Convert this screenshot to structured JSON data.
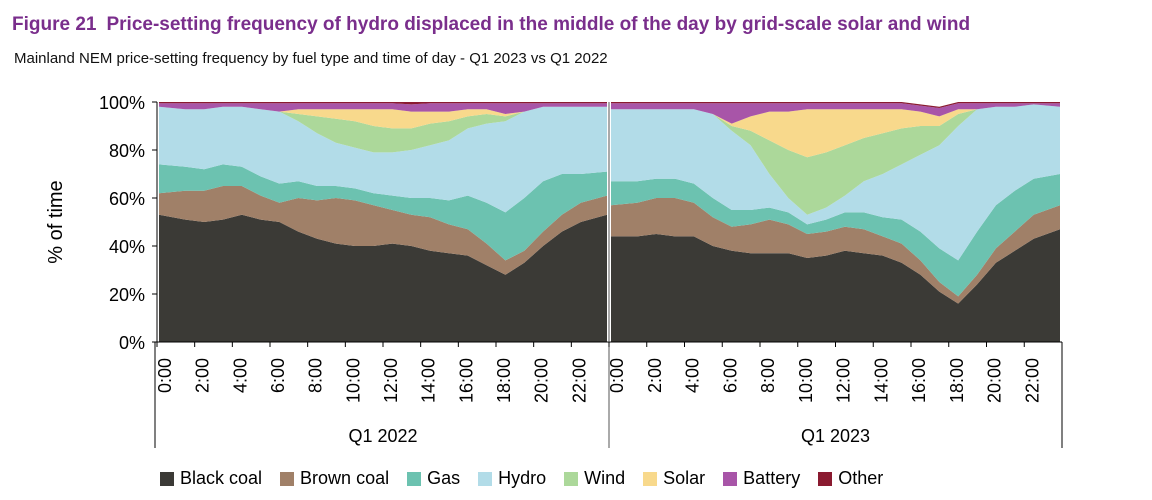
{
  "figure": {
    "number": "Figure 21",
    "title": "Price-setting frequency of hydro displaced in the middle of the day by grid-scale solar and wind",
    "subtitle": "Mainland NEM price-setting frequency by fuel type and time of day - Q1 2023 vs Q1 2022"
  },
  "colors": {
    "Black coal": "#3b3a36",
    "Brown coal": "#a08068",
    "Gas": "#6cc2b0",
    "Hydro": "#b2dce8",
    "Wind": "#acd89a",
    "Solar": "#f8d98c",
    "Battery": "#a855a8",
    "Other": "#8a1a30"
  },
  "chart_data": {
    "type": "area",
    "stacked": true,
    "ylabel": "% of time",
    "ylim": [
      0,
      100
    ],
    "yticks": [
      "0%",
      "20%",
      "40%",
      "60%",
      "80%",
      "100%"
    ],
    "xtick_labels": [
      "0:00",
      "2:00",
      "4:00",
      "6:00",
      "8:00",
      "10:00",
      "12:00",
      "14:00",
      "16:00",
      "18:00",
      "20:00",
      "22:00"
    ],
    "groups": [
      "Q1 2022",
      "Q1 2023"
    ],
    "x": [
      "0:00",
      "1:00",
      "2:00",
      "3:00",
      "4:00",
      "5:00",
      "6:00",
      "7:00",
      "8:00",
      "9:00",
      "10:00",
      "11:00",
      "12:00",
      "13:00",
      "14:00",
      "15:00",
      "16:00",
      "17:00",
      "18:00",
      "19:00",
      "20:00",
      "21:00",
      "22:00",
      "23:00"
    ],
    "series": [
      {
        "name": "Black coal",
        "q1_2022": [
          53,
          51,
          50,
          51,
          53,
          51,
          50,
          46,
          43,
          41,
          40,
          40,
          41,
          40,
          38,
          37,
          36,
          32,
          28,
          33,
          40,
          46,
          50,
          53
        ],
        "q1_2023": [
          44,
          44,
          45,
          44,
          44,
          40,
          38,
          37,
          37,
          37,
          35,
          36,
          38,
          37,
          36,
          33,
          28,
          21,
          16,
          24,
          33,
          38,
          43,
          47
        ]
      },
      {
        "name": "Brown coal",
        "q1_2022": [
          9,
          12,
          13,
          14,
          12,
          10,
          8,
          14,
          16,
          19,
          19,
          17,
          14,
          13,
          14,
          12,
          11,
          9,
          6,
          5,
          6,
          7,
          8,
          8
        ],
        "q1_2023": [
          13,
          14,
          15,
          16,
          14,
          12,
          10,
          12,
          14,
          12,
          10,
          10,
          10,
          10,
          8,
          8,
          6,
          4,
          3,
          4,
          6,
          8,
          10,
          10
        ]
      },
      {
        "name": "Gas",
        "q1_2022": [
          12,
          10,
          9,
          9,
          8,
          8,
          8,
          7,
          6,
          5,
          5,
          5,
          6,
          7,
          8,
          10,
          14,
          17,
          20,
          22,
          21,
          17,
          12,
          10
        ],
        "q1_2023": [
          10,
          9,
          8,
          8,
          8,
          8,
          7,
          6,
          5,
          5,
          4,
          5,
          6,
          7,
          8,
          10,
          12,
          14,
          15,
          18,
          18,
          17,
          15,
          13
        ]
      },
      {
        "name": "Hydro",
        "q1_2022": [
          24,
          24,
          25,
          24,
          25,
          28,
          30,
          25,
          22,
          18,
          17,
          17,
          18,
          20,
          22,
          25,
          28,
          33,
          38,
          36,
          31,
          28,
          28,
          27
        ],
        "q1_2023": [
          30,
          30,
          29,
          29,
          31,
          35,
          33,
          27,
          14,
          6,
          4,
          5,
          7,
          13,
          18,
          23,
          32,
          43,
          56,
          51,
          41,
          35,
          31,
          28
        ]
      },
      {
        "name": "Wind",
        "q1_2022": [
          0,
          0,
          0,
          0,
          0,
          0,
          0,
          3,
          7,
          10,
          11,
          11,
          10,
          9,
          9,
          8,
          5,
          4,
          2,
          0,
          0,
          0,
          0,
          0
        ],
        "q1_2023": [
          0,
          0,
          0,
          0,
          0,
          0,
          2,
          6,
          14,
          20,
          24,
          23,
          21,
          18,
          17,
          15,
          12,
          8,
          5,
          0,
          0,
          0,
          0,
          0
        ]
      },
      {
        "name": "Solar",
        "q1_2022": [
          0,
          0,
          0,
          0,
          0,
          0,
          0,
          2,
          3,
          4,
          5,
          7,
          8,
          7,
          5,
          4,
          3,
          2,
          1,
          0,
          0,
          0,
          0,
          0
        ],
        "q1_2023": [
          0,
          0,
          0,
          0,
          0,
          0,
          1,
          6,
          12,
          16,
          20,
          18,
          15,
          12,
          10,
          8,
          6,
          4,
          2,
          0,
          0,
          0,
          0,
          0
        ]
      },
      {
        "name": "Battery",
        "q1_2022": [
          1.5,
          2.5,
          2.5,
          1.5,
          1.5,
          2.5,
          3.5,
          2.5,
          2.5,
          2.5,
          2.5,
          2.5,
          2.5,
          3,
          3.5,
          3.5,
          2.5,
          2.5,
          4.5,
          3.5,
          1.5,
          1.5,
          1.5,
          1.5
        ],
        "q1_2023": [
          2.5,
          2.5,
          2.5,
          2.5,
          2.5,
          4.5,
          8.5,
          5.5,
          3.5,
          3.5,
          2.5,
          2.5,
          2.5,
          2.5,
          2.5,
          2.5,
          2.5,
          3.5,
          2.5,
          2.5,
          1.5,
          1.5,
          0.5,
          1.5
        ]
      },
      {
        "name": "Other",
        "q1_2022": [
          0.5,
          0.5,
          0.5,
          0.5,
          0.5,
          0.5,
          0.5,
          0.5,
          0.5,
          0.5,
          0.5,
          0.5,
          0.5,
          1,
          0.5,
          0.5,
          0.5,
          0.5,
          0.5,
          0.5,
          0.5,
          0.5,
          0.5,
          0.5
        ],
        "q1_2023": [
          0.5,
          0.5,
          0.5,
          0.5,
          0.5,
          0.5,
          0.5,
          0.5,
          0.5,
          0.5,
          0.5,
          0.5,
          0.5,
          0.5,
          0.5,
          0.5,
          0.5,
          0.5,
          0.5,
          0.5,
          0.5,
          0.5,
          0.5,
          0.5
        ]
      }
    ],
    "legend": [
      "Black coal",
      "Brown coal",
      "Gas",
      "Hydro",
      "Wind",
      "Solar",
      "Battery",
      "Other"
    ],
    "legend_position": "bottom"
  }
}
